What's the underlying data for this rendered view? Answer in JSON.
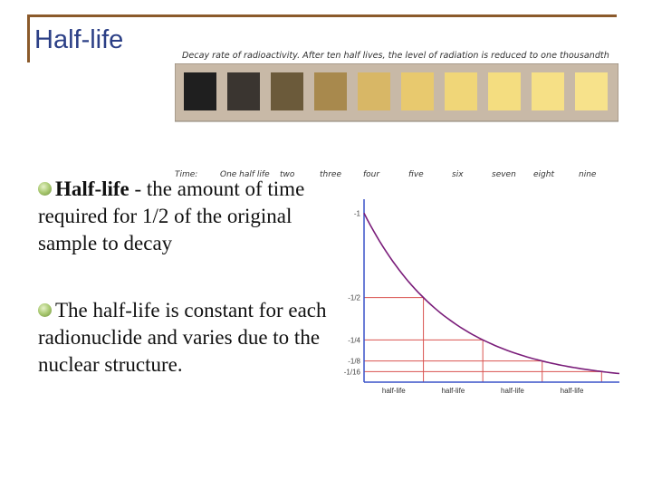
{
  "title": "Half-life",
  "decay_figure": {
    "caption": "Decay rate of radioactivity. After ten half lives, the level of radiation is reduced to one thousandth",
    "labels": [
      "Time:",
      "One half life",
      "two",
      "three",
      "four",
      "five",
      "six",
      "seven",
      "eight",
      "nine"
    ],
    "colors": {
      "frame": "#c8b9a7",
      "dark": "#1a1a1a",
      "light": "#f7e08b"
    }
  },
  "bullets": [
    {
      "term": "Half-life",
      "text": " - the amount of time required for 1/2 of the original sample to decay"
    },
    {
      "term": "",
      "text": "The half-life is constant for each radionuclide and varies due to the nuclear structure."
    }
  ],
  "chart_data": {
    "type": "line",
    "x_tick_labels": [
      "half-life",
      "half-life",
      "half-life",
      "half-life"
    ],
    "y_tick_labels": [
      "1",
      "1/2",
      "1/4",
      "1/8",
      "1/16"
    ],
    "x": [
      0,
      1,
      2,
      3,
      4
    ],
    "y": [
      1,
      0.5,
      0.25,
      0.125,
      0.0625
    ],
    "xlim": [
      0,
      4.3
    ],
    "ylim": [
      0,
      1.05
    ],
    "colors": {
      "curve": "#7a1d7a",
      "axis": "#3a52c8",
      "guide": "#d9534f"
    }
  },
  "accent": "#8b5a2b",
  "title_color": "#2b3f86"
}
